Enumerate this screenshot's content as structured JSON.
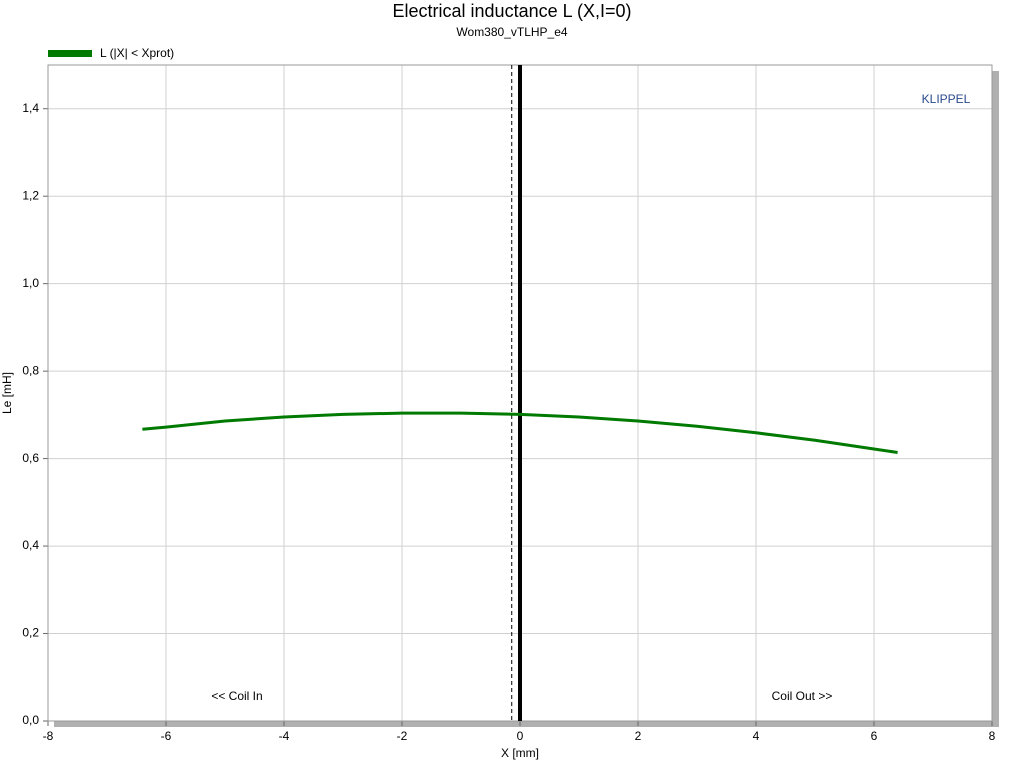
{
  "chart_data": {
    "type": "line",
    "title": "Electrical inductance L (X,I=0)",
    "subtitle": "Wom380_vTLHP_e4",
    "x_label": "X [mm]",
    "y_label": "Le [mH]",
    "annotations": [
      "<< Coil In",
      "Coil Out >>",
      "KLIPPEL"
    ],
    "x": [
      -6.4,
      -6,
      -5,
      -4,
      -3,
      -2,
      -1,
      0,
      1,
      2,
      3,
      4,
      5,
      6,
      6.4
    ],
    "series": [
      {
        "name": "L (|X| < Xprot)",
        "color": "#007a00",
        "values": [
          0.667,
          0.672,
          0.686,
          0.695,
          0.701,
          0.704,
          0.704,
          0.701,
          0.695,
          0.686,
          0.674,
          0.659,
          0.642,
          0.622,
          0.614
        ]
      }
    ],
    "vlines": [
      {
        "x": 0,
        "style": "solid"
      },
      {
        "x": -0.14,
        "style": "dashed"
      }
    ],
    "xlim": [
      -8,
      8
    ],
    "xticks": [
      -8,
      -6,
      -4,
      -2,
      0,
      2,
      4,
      6,
      8
    ],
    "ylim": [
      0,
      1.5
    ],
    "yticks": [
      {
        "value": 0,
        "label": "0,0"
      },
      {
        "value": 0.2,
        "label": "0,2"
      },
      {
        "value": 0.4,
        "label": "0,4"
      },
      {
        "value": 0.6,
        "label": "0,6"
      },
      {
        "value": 0.8,
        "label": "0,8"
      },
      {
        "value": 1.0,
        "label": "1,0"
      },
      {
        "value": 1.2,
        "label": "1,2"
      },
      {
        "value": 1.4,
        "label": "1,4"
      }
    ],
    "grid": true,
    "legend": "top-left"
  }
}
